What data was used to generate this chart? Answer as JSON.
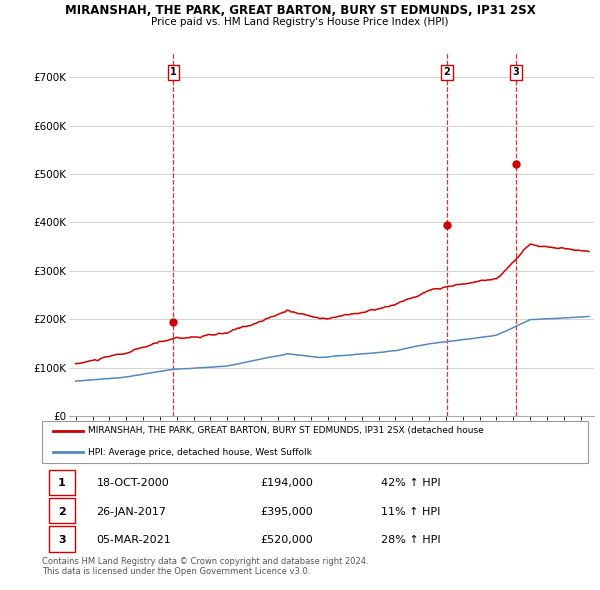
{
  "title": "MIRANSHAH, THE PARK, GREAT BARTON, BURY ST EDMUNDS, IP31 2SX",
  "subtitle": "Price paid vs. HM Land Registry's House Price Index (HPI)",
  "ylim": [
    0,
    750000
  ],
  "yticks": [
    0,
    100000,
    200000,
    300000,
    400000,
    500000,
    600000,
    700000
  ],
  "ytick_labels": [
    "£0",
    "£100K",
    "£200K",
    "£300K",
    "£400K",
    "£500K",
    "£600K",
    "£700K"
  ],
  "red_color": "#cc0000",
  "blue_color": "#5588bb",
  "vline_color": "#cc0000",
  "grid_color": "#cccccc",
  "bg_color": "#ffffff",
  "purchases": [
    {
      "date_num": 2000.8,
      "price": 194000,
      "label": "1"
    },
    {
      "date_num": 2017.07,
      "price": 395000,
      "label": "2"
    },
    {
      "date_num": 2021.17,
      "price": 520000,
      "label": "3"
    }
  ],
  "legend_red_text": "MIRANSHAH, THE PARK, GREAT BARTON, BURY ST EDMUNDS, IP31 2SX (detached house",
  "legend_blue_text": "HPI: Average price, detached house, West Suffolk",
  "table_rows": [
    {
      "num": "1",
      "date": "18-OCT-2000",
      "price": "£194,000",
      "change": "42% ↑ HPI"
    },
    {
      "num": "2",
      "date": "26-JAN-2017",
      "price": "£395,000",
      "change": "11% ↑ HPI"
    },
    {
      "num": "3",
      "date": "05-MAR-2021",
      "price": "£520,000",
      "change": "28% ↑ HPI"
    }
  ],
  "footer": "Contains HM Land Registry data © Crown copyright and database right 2024.\nThis data is licensed under the Open Government Licence v3.0.",
  "xlim_left": 1994.6,
  "xlim_right": 2025.8,
  "x_start": 1995,
  "x_end": 2025
}
